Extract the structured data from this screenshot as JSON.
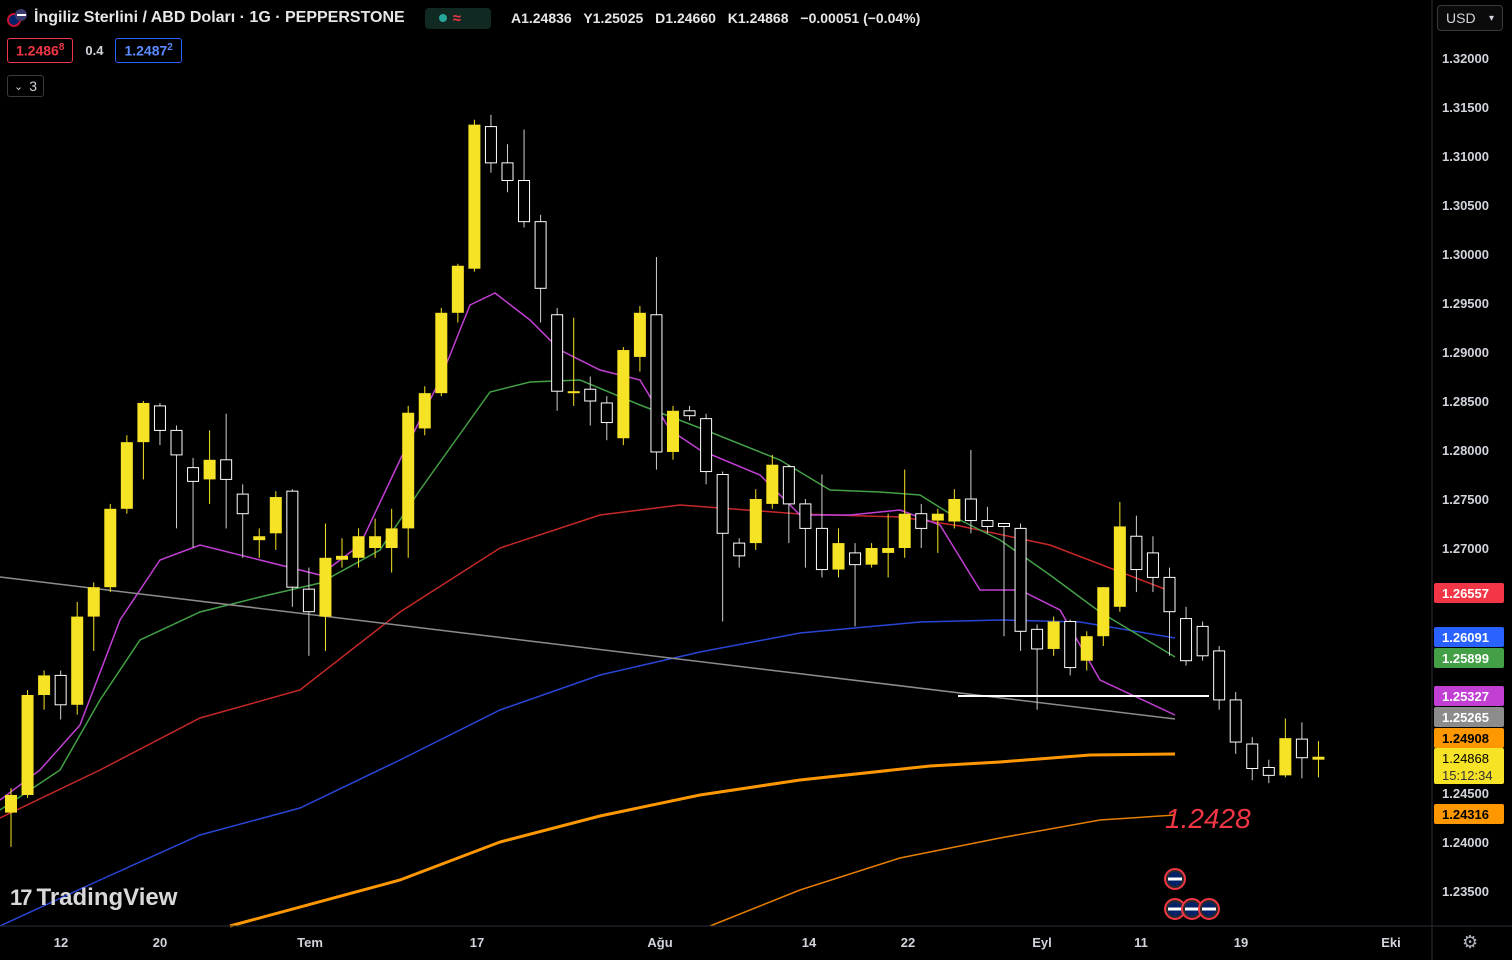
{
  "header": {
    "title": "İngiliz Sterlini / ABD Doları · 1G · PEPPERSTONE",
    "ohlc": {
      "open": "A1.24836",
      "high": "Y1.25025",
      "low": "D1.24660",
      "close": "K1.24868",
      "change": "−0.00051 (−0.04%)"
    },
    "sell_main": "1.2486",
    "sell_pip": "8",
    "spread": "0.4",
    "buy_main": "1.2487",
    "buy_pip": "2",
    "indicators_count": "3",
    "currency": "USD"
  },
  "branding": {
    "logo_text": "TradingView"
  },
  "colors": {
    "bull": "#f7e326",
    "bear": "#ffffff",
    "ma_magenta": "#c23fd4",
    "ma_green": "#43a047",
    "ma_red": "#c62828",
    "ma_blue": "#2945d6",
    "ma_orange_thick": "#ff9800",
    "ma_orange_thin": "#e67e00",
    "trendline": "#8c8c8c",
    "level_line": "#ffffff",
    "annotation": "#f23645"
  },
  "chart_data": {
    "type": "candlestick",
    "y_axis_ticks": [
      "1.32000",
      "1.31500",
      "1.31000",
      "1.30500",
      "1.30000",
      "1.29500",
      "1.29000",
      "1.28500",
      "1.28000",
      "1.27500",
      "1.27000",
      "1.24500",
      "1.24000",
      "1.23500"
    ],
    "ylim": [
      1.2306,
      1.3232
    ],
    "x_axis_ticks": [
      "12",
      "20",
      "Tem",
      "17",
      "Ağu",
      "14",
      "22",
      "Eyl",
      "11",
      "19",
      "Eki"
    ],
    "price_labels": [
      {
        "value": "1.26557",
        "color": "#f23645"
      },
      {
        "value": "1.26091",
        "color": "#2962ff"
      },
      {
        "value": "1.25899",
        "color": "#43a047"
      },
      {
        "value": "1.25327",
        "color": "#c23fd4"
      },
      {
        "value": "1.25265",
        "color": "#8c8c8c"
      },
      {
        "value": "1.24908",
        "color": "#ff9800"
      },
      {
        "value": "1.24868",
        "color": "#f7e326",
        "countdown": "15:12:34"
      },
      {
        "value": "1.24316",
        "color": "#ff9800"
      }
    ],
    "annotation": "1.2428",
    "horizontal_level": 1.2533,
    "candles": [
      [
        1.243,
        1.2448,
        1.2395,
        1.2455
      ],
      [
        1.2448,
        1.255,
        1.2445,
        1.2555
      ],
      [
        1.255,
        1.257,
        1.2535,
        1.2575
      ],
      [
        1.257,
        1.254,
        1.2525,
        1.2575
      ],
      [
        1.254,
        1.263,
        1.253,
        1.2645
      ],
      [
        1.263,
        1.266,
        1.2595,
        1.2665
      ],
      [
        1.266,
        1.274,
        1.2655,
        1.2745
      ],
      [
        1.274,
        1.2808,
        1.2735,
        1.2815
      ],
      [
        1.2808,
        1.2848,
        1.277,
        1.285
      ],
      [
        1.2845,
        1.282,
        1.2805,
        1.2848
      ],
      [
        1.282,
        1.2795,
        1.272,
        1.2825
      ],
      [
        1.2782,
        1.2768,
        1.27,
        1.2792
      ],
      [
        1.277,
        1.279,
        1.2745,
        1.282
      ],
      [
        1.279,
        1.277,
        1.272,
        1.2837
      ],
      [
        1.2755,
        1.2735,
        1.269,
        1.2765
      ],
      [
        1.2708,
        1.2712,
        1.269,
        1.272
      ],
      [
        1.2715,
        1.2752,
        1.2698,
        1.2758
      ],
      [
        1.2758,
        1.266,
        1.264,
        1.276
      ],
      [
        1.2658,
        1.2635,
        1.259,
        1.268
      ],
      [
        1.263,
        1.269,
        1.2595,
        1.2725
      ],
      [
        1.2688,
        1.2692,
        1.268,
        1.271
      ],
      [
        1.269,
        1.2712,
        1.268,
        1.272
      ],
      [
        1.27,
        1.2712,
        1.269,
        1.273
      ],
      [
        1.27,
        1.272,
        1.2675,
        1.274
      ],
      [
        1.272,
        1.2838,
        1.269,
        1.2845
      ],
      [
        1.2822,
        1.2858,
        1.2815,
        1.2865
      ],
      [
        1.2858,
        1.294,
        1.2855,
        1.2945
      ],
      [
        1.294,
        1.2988,
        1.293,
        1.299
      ],
      [
        1.2985,
        1.3132,
        1.2982,
        1.3137
      ],
      [
        1.313,
        1.3093,
        1.3083,
        1.3142
      ],
      [
        1.3093,
        1.3075,
        1.3063,
        1.3112
      ],
      [
        1.3075,
        1.3033,
        1.3027,
        1.3127
      ],
      [
        1.3033,
        1.2965,
        1.293,
        1.304
      ],
      [
        1.2938,
        1.286,
        1.284,
        1.2945
      ],
      [
        1.286,
        1.286,
        1.2845,
        1.2935
      ],
      [
        1.2862,
        1.285,
        1.2825,
        1.2875
      ],
      [
        1.2848,
        1.2828,
        1.281,
        1.2855
      ],
      [
        1.2812,
        1.2902,
        1.2805,
        1.2905
      ],
      [
        1.2895,
        1.294,
        1.288,
        1.2947
      ],
      [
        1.2938,
        1.2798,
        1.278,
        1.2997
      ],
      [
        1.2798,
        1.284,
        1.279,
        1.2845
      ],
      [
        1.284,
        1.2835,
        1.283,
        1.2845
      ],
      [
        1.2832,
        1.2778,
        1.2765,
        1.2837
      ],
      [
        1.2775,
        1.2715,
        1.2625,
        1.2778
      ],
      [
        1.2705,
        1.2692,
        1.268,
        1.271
      ],
      [
        1.2705,
        1.275,
        1.2698,
        1.276
      ],
      [
        1.2745,
        1.2785,
        1.274,
        1.2795
      ],
      [
        1.2783,
        1.2745,
        1.2705,
        1.2785
      ],
      [
        1.2745,
        1.272,
        1.268,
        1.275
      ],
      [
        1.272,
        1.2678,
        1.267,
        1.2775
      ],
      [
        1.2678,
        1.2705,
        1.267,
        1.272
      ],
      [
        1.2695,
        1.2683,
        1.262,
        1.2705
      ],
      [
        1.2683,
        1.27,
        1.268,
        1.2705
      ],
      [
        1.2695,
        1.27,
        1.267,
        1.2735
      ],
      [
        1.27,
        1.2735,
        1.269,
        1.278
      ],
      [
        1.2735,
        1.272,
        1.27,
        1.2745
      ],
      [
        1.2728,
        1.2735,
        1.2695,
        1.274
      ],
      [
        1.2727,
        1.275,
        1.272,
        1.276
      ],
      [
        1.275,
        1.2728,
        1.2715,
        1.28
      ],
      [
        1.2728,
        1.2722,
        1.2715,
        1.2742
      ],
      [
        1.2725,
        1.2722,
        1.261,
        1.2725
      ],
      [
        1.272,
        1.2615,
        1.2595,
        1.2725
      ],
      [
        1.2617,
        1.2597,
        1.2535,
        1.2622
      ],
      [
        1.2597,
        1.2625,
        1.259,
        1.263
      ],
      [
        1.2625,
        1.2578,
        1.257,
        1.2627
      ],
      [
        1.2585,
        1.261,
        1.2575,
        1.2615
      ],
      [
        1.261,
        1.266,
        1.26,
        1.266
      ],
      [
        1.264,
        1.2722,
        1.2635,
        1.2747
      ],
      [
        1.2712,
        1.2678,
        1.2655,
        1.2733
      ],
      [
        1.2695,
        1.267,
        1.2655,
        1.2712
      ],
      [
        1.267,
        1.2635,
        1.259,
        1.268
      ],
      [
        1.2628,
        1.2585,
        1.258,
        1.264
      ],
      [
        1.262,
        1.259,
        1.2585,
        1.2625
      ],
      [
        1.2595,
        1.2545,
        1.2535,
        1.26
      ],
      [
        1.2545,
        1.2502,
        1.249,
        1.2553
      ],
      [
        1.25,
        1.2475,
        1.2463,
        1.2507
      ],
      [
        1.2476,
        1.2468,
        1.246,
        1.2484
      ],
      [
        1.2468,
        1.2506,
        1.2466,
        1.2526
      ],
      [
        1.2505,
        1.2486,
        1.2465,
        1.2522
      ],
      [
        1.2484,
        1.2487,
        1.2466,
        1.2503
      ]
    ]
  }
}
